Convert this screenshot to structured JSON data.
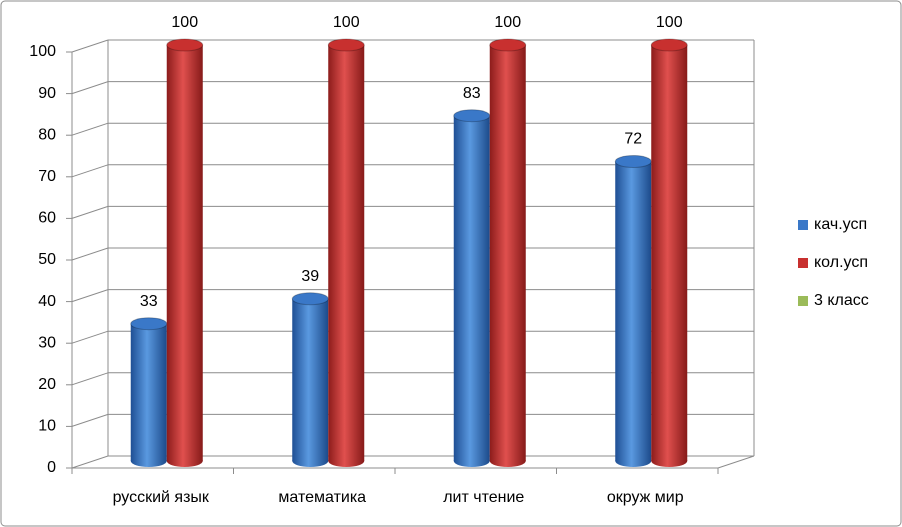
{
  "chart_data": {
    "type": "bar3d",
    "categories": [
      "русский язык",
      "математика",
      "лит чтение",
      "окруж мир"
    ],
    "series": [
      {
        "name": "кач.усп",
        "color": "#3a78c8",
        "values": [
          33,
          39,
          83,
          72
        ]
      },
      {
        "name": "кол.усп",
        "color": "#c8302f",
        "values": [
          100,
          100,
          100,
          100
        ]
      },
      {
        "name": "3 класс",
        "color": "#9bbb59",
        "values": [
          null,
          null,
          null,
          null
        ]
      }
    ],
    "ylim": [
      0,
      100
    ],
    "yticks": [
      0,
      10,
      20,
      30,
      40,
      50,
      60,
      70,
      80,
      90,
      100
    ],
    "grid": true,
    "legend": "right"
  }
}
